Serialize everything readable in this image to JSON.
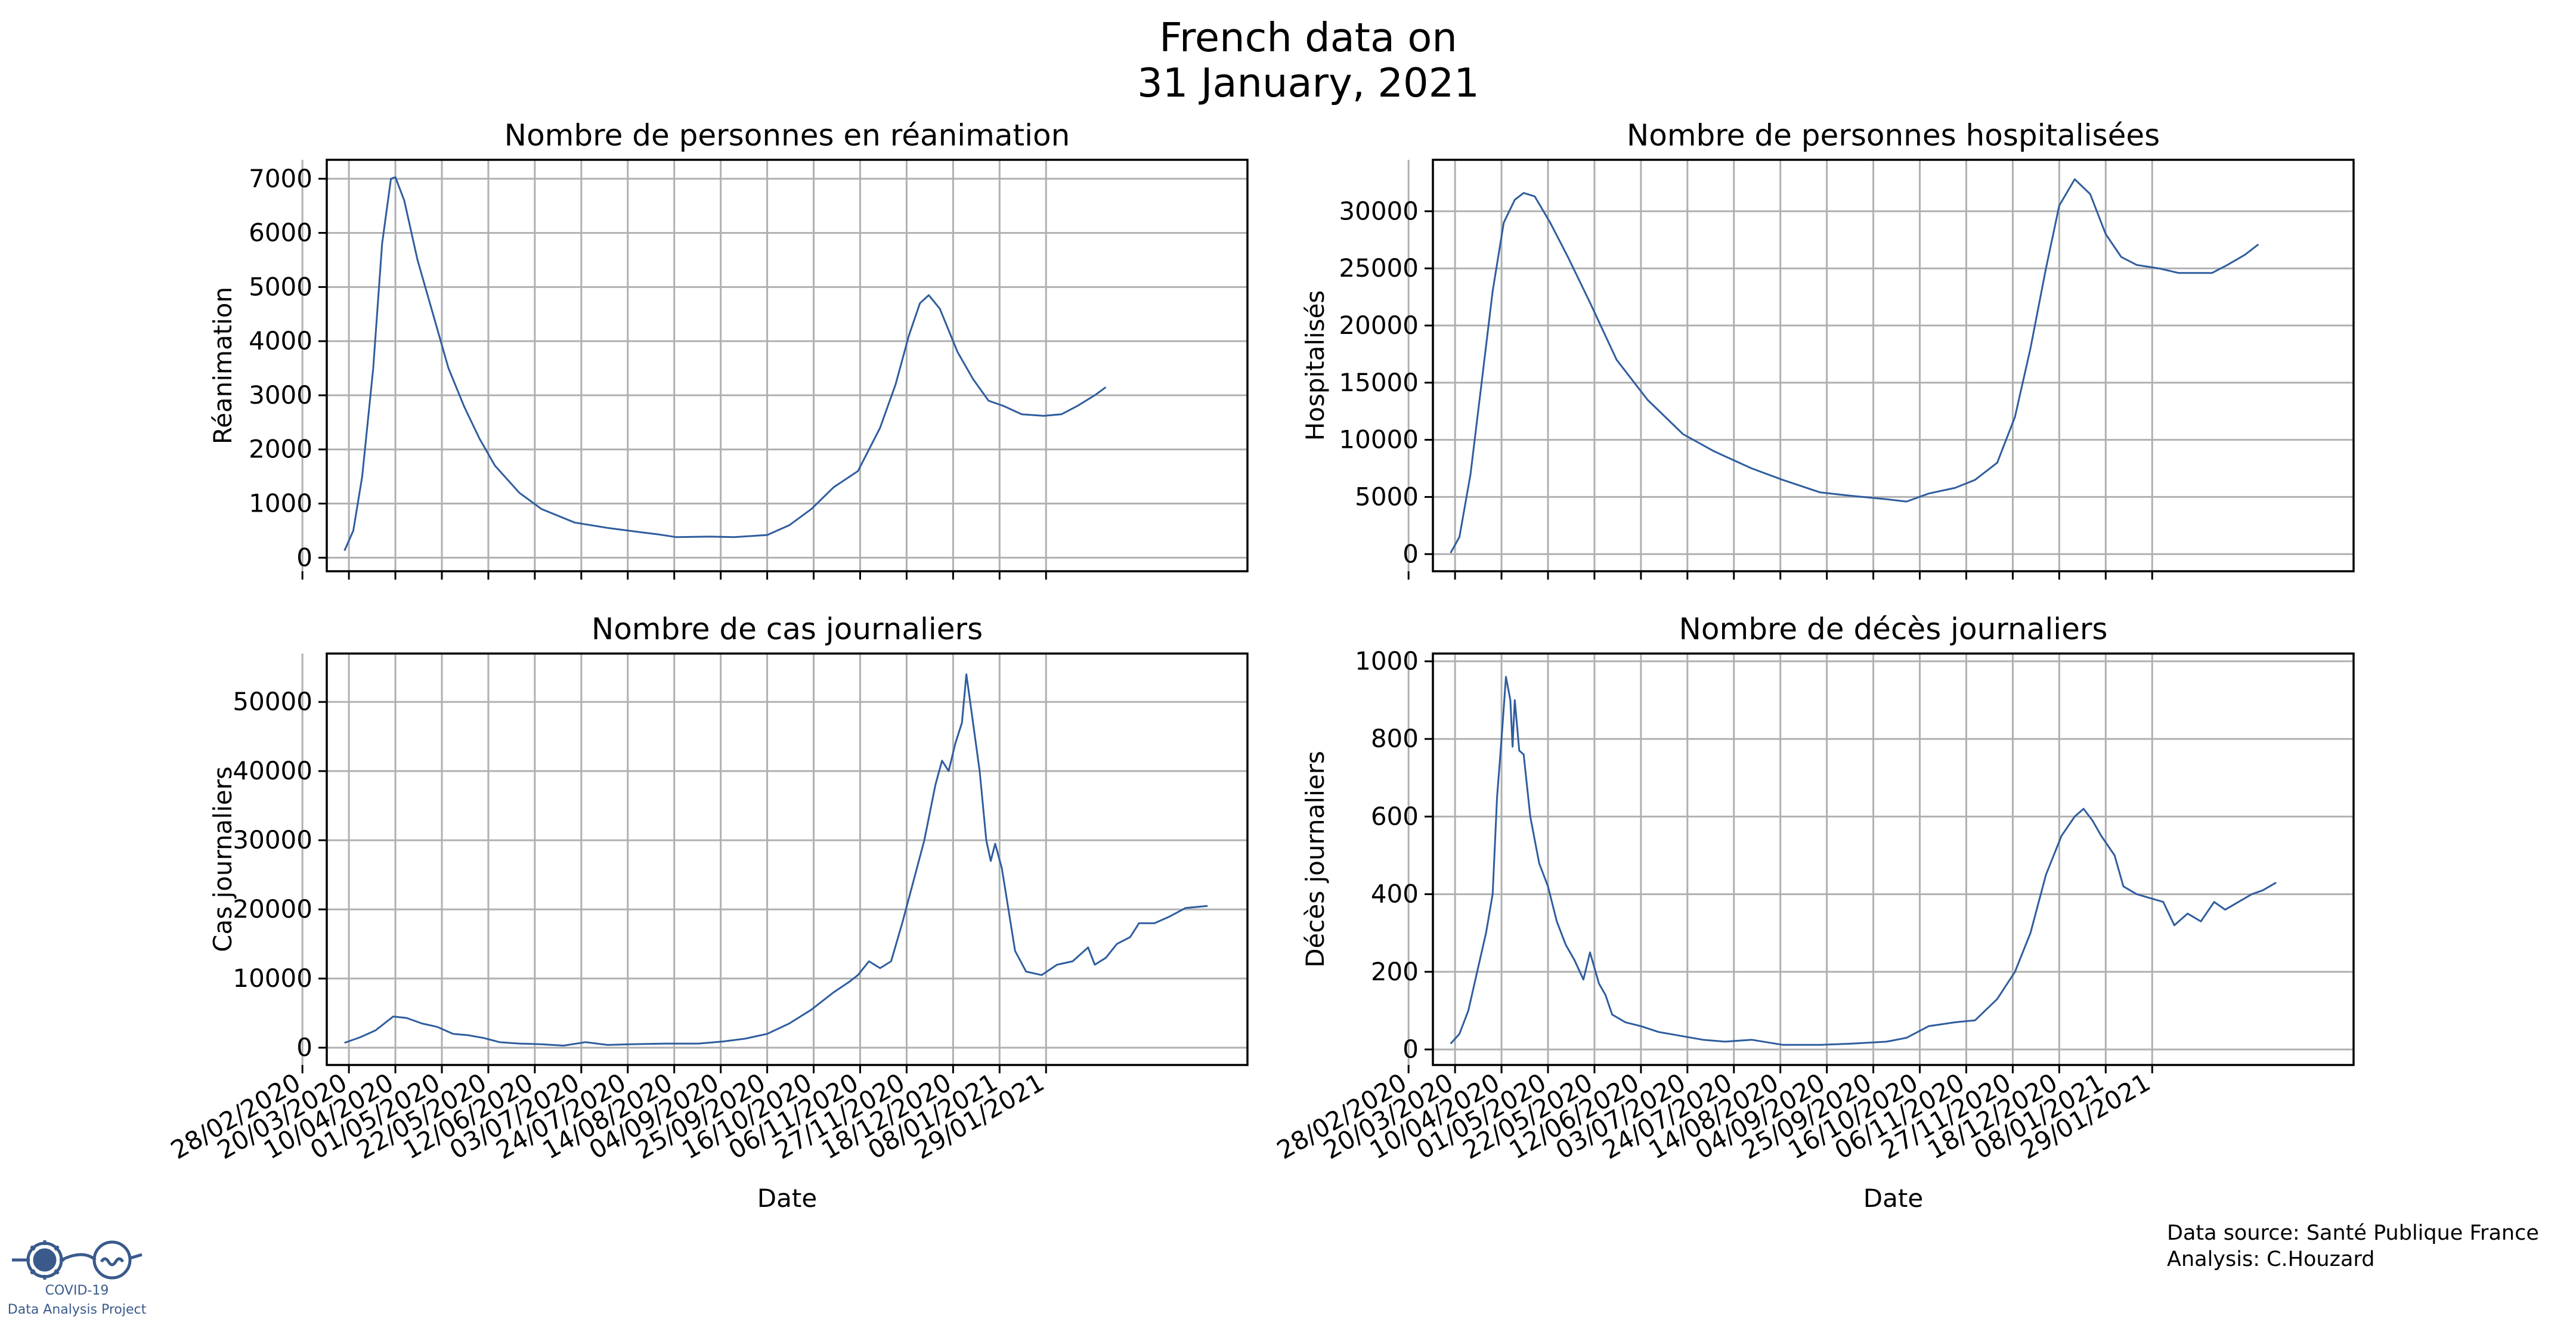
{
  "figure": {
    "title_line1": "French data on",
    "title_line2": "31 January, 2021"
  },
  "footer": {
    "source": "Data source: Santé Publique France",
    "analysis": "Analysis: C.Houzard"
  },
  "logo": {
    "line1": "COVID-19",
    "line2": "Data Analysis Project",
    "icon": "virus-glasses-icon",
    "color": "#3a5a8c"
  },
  "style": {
    "line_color": "#2f5d9e",
    "grid_color": "#b0b0b0"
  },
  "chart_data": [
    {
      "type": "line",
      "title": "Nombre de personnes en réanimation",
      "xlabel": "",
      "ylabel": "Réanimation",
      "x_tick_labels": [
        "28/02/2020",
        "20/03/2020",
        "10/04/2020",
        "01/05/2020",
        "22/05/2020",
        "12/06/2020",
        "03/07/2020",
        "24/07/2020",
        "14/08/2020",
        "04/09/2020",
        "25/09/2020",
        "16/10/2020",
        "06/11/2020",
        "27/11/2020",
        "18/12/2020",
        "08/01/2021",
        "29/01/2021"
      ],
      "show_x_tick_labels": false,
      "ylim": [
        -250,
        7350
      ],
      "yticks": [
        0,
        1000,
        2000,
        3000,
        4000,
        5000,
        6000,
        7000
      ],
      "grid": true,
      "series": [
        {
          "points": [
            [
              "2020-03-18",
              130
            ],
            [
              "2020-03-22",
              500
            ],
            [
              "2020-03-26",
              1500
            ],
            [
              "2020-03-31",
              3500
            ],
            [
              "2020-04-04",
              5800
            ],
            [
              "2020-04-08",
              7000
            ],
            [
              "2020-04-10",
              7030
            ],
            [
              "2020-04-14",
              6600
            ],
            [
              "2020-04-20",
              5500
            ],
            [
              "2020-04-27",
              4500
            ],
            [
              "2020-05-04",
              3500
            ],
            [
              "2020-05-11",
              2800
            ],
            [
              "2020-05-18",
              2200
            ],
            [
              "2020-05-25",
              1700
            ],
            [
              "2020-06-05",
              1200
            ],
            [
              "2020-06-15",
              900
            ],
            [
              "2020-06-30",
              650
            ],
            [
              "2020-07-15",
              550
            ],
            [
              "2020-07-30",
              470
            ],
            [
              "2020-08-07",
              430
            ],
            [
              "2020-08-15",
              380
            ],
            [
              "2020-08-30",
              390
            ],
            [
              "2020-09-10",
              380
            ],
            [
              "2020-09-25",
              420
            ],
            [
              "2020-10-05",
              600
            ],
            [
              "2020-10-15",
              900
            ],
            [
              "2020-10-25",
              1300
            ],
            [
              "2020-11-05",
              1600
            ],
            [
              "2020-11-15",
              2400
            ],
            [
              "2020-11-22",
              3200
            ],
            [
              "2020-11-28",
              4100
            ],
            [
              "2020-12-03",
              4700
            ],
            [
              "2020-12-07",
              4850
            ],
            [
              "2020-12-12",
              4600
            ],
            [
              "2020-12-20",
              3800
            ],
            [
              "2020-12-27",
              3300
            ],
            [
              "2021-01-03",
              2900
            ],
            [
              "2021-01-10",
              2800
            ],
            [
              "2021-01-18",
              2650
            ],
            [
              "2021-01-28",
              2620
            ],
            [
              "2021-02-05",
              2650
            ],
            [
              "2021-02-12",
              2800
            ],
            [
              "2021-02-20",
              3000
            ],
            [
              "2021-02-25",
              3150
            ]
          ]
        }
      ]
    },
    {
      "type": "line",
      "title": "Nombre de personnes hospitalisées",
      "xlabel": "",
      "ylabel": "Hospitalisés",
      "x_tick_labels": [
        "28/02/2020",
        "20/03/2020",
        "10/04/2020",
        "01/05/2020",
        "22/05/2020",
        "12/06/2020",
        "03/07/2020",
        "24/07/2020",
        "14/08/2020",
        "04/09/2020",
        "25/09/2020",
        "16/10/2020",
        "06/11/2020",
        "27/11/2020",
        "18/12/2020",
        "08/01/2021",
        "29/01/2021"
      ],
      "show_x_tick_labels": false,
      "ylim": [
        -1500,
        34500
      ],
      "yticks": [
        0,
        5000,
        10000,
        15000,
        20000,
        25000,
        30000
      ],
      "grid": true,
      "series": [
        {
          "points": [
            [
              "2020-03-18",
              100
            ],
            [
              "2020-03-22",
              1500
            ],
            [
              "2020-03-27",
              7000
            ],
            [
              "2020-04-01",
              15000
            ],
            [
              "2020-04-06",
              23000
            ],
            [
              "2020-04-11",
              29000
            ],
            [
              "2020-04-16",
              31000
            ],
            [
              "2020-04-20",
              31600
            ],
            [
              "2020-04-25",
              31300
            ],
            [
              "2020-05-02",
              29000
            ],
            [
              "2020-05-10",
              26000
            ],
            [
              "2020-05-20",
              22000
            ],
            [
              "2020-06-01",
              17000
            ],
            [
              "2020-06-15",
              13500
            ],
            [
              "2020-07-01",
              10500
            ],
            [
              "2020-07-15",
              9000
            ],
            [
              "2020-08-01",
              7500
            ],
            [
              "2020-08-15",
              6500
            ],
            [
              "2020-09-01",
              5400
            ],
            [
              "2020-09-15",
              5100
            ],
            [
              "2020-10-01",
              4800
            ],
            [
              "2020-10-10",
              4600
            ],
            [
              "2020-10-20",
              5300
            ],
            [
              "2020-11-01",
              5800
            ],
            [
              "2020-11-10",
              6500
            ],
            [
              "2020-11-20",
              8000
            ],
            [
              "2020-11-28",
              12000
            ],
            [
              "2020-12-05",
              18000
            ],
            [
              "2020-12-12",
              25000
            ],
            [
              "2020-12-18",
              30500
            ],
            [
              "2020-12-25",
              32800
            ],
            [
              "2021-01-01",
              31500
            ],
            [
              "2021-01-08",
              28000
            ],
            [
              "2021-01-15",
              26000
            ],
            [
              "2021-01-22",
              25300
            ],
            [
              "2021-02-01",
              25000
            ],
            [
              "2021-02-10",
              24600
            ],
            [
              "2021-02-18",
              24600
            ],
            [
              "2021-02-25",
              24600
            ],
            [
              "2021-03-04",
              25300
            ],
            [
              "2021-03-12",
              26200
            ],
            [
              "2021-03-18",
              27100
            ]
          ]
        }
      ]
    },
    {
      "type": "line",
      "title": "Nombre de cas journaliers",
      "xlabel": "Date",
      "ylabel": "Cas journaliers",
      "x_tick_labels": [
        "28/02/2020",
        "20/03/2020",
        "10/04/2020",
        "01/05/2020",
        "22/05/2020",
        "12/06/2020",
        "03/07/2020",
        "24/07/2020",
        "14/08/2020",
        "04/09/2020",
        "25/09/2020",
        "16/10/2020",
        "06/11/2020",
        "27/11/2020",
        "18/12/2020",
        "08/01/2021",
        "29/01/2021"
      ],
      "show_x_tick_labels": true,
      "ylim": [
        -2500,
        57000
      ],
      "yticks": [
        0,
        10000,
        20000,
        30000,
        40000,
        50000
      ],
      "grid": true,
      "series": [
        {
          "points": [
            [
              "2020-03-18",
              700
            ],
            [
              "2020-03-25",
              1500
            ],
            [
              "2020-04-01",
              2500
            ],
            [
              "2020-04-05",
              3500
            ],
            [
              "2020-04-09",
              4500
            ],
            [
              "2020-04-15",
              4300
            ],
            [
              "2020-04-22",
              3500
            ],
            [
              "2020-04-29",
              3000
            ],
            [
              "2020-05-06",
              2000
            ],
            [
              "2020-05-13",
              1800
            ],
            [
              "2020-05-20",
              1400
            ],
            [
              "2020-05-27",
              800
            ],
            [
              "2020-06-05",
              600
            ],
            [
              "2020-06-15",
              500
            ],
            [
              "2020-06-25",
              300
            ],
            [
              "2020-07-05",
              800
            ],
            [
              "2020-07-15",
              400
            ],
            [
              "2020-07-25",
              500
            ],
            [
              "2020-08-10",
              600
            ],
            [
              "2020-08-25",
              600
            ],
            [
              "2020-09-05",
              900
            ],
            [
              "2020-09-15",
              1300
            ],
            [
              "2020-09-25",
              2000
            ],
            [
              "2020-10-05",
              3500
            ],
            [
              "2020-10-15",
              5500
            ],
            [
              "2020-10-25",
              8000
            ],
            [
              "2020-11-01",
              9500
            ],
            [
              "2020-11-05",
              10500
            ],
            [
              "2020-11-10",
              12500
            ],
            [
              "2020-11-15",
              11500
            ],
            [
              "2020-11-20",
              12500
            ],
            [
              "2020-11-25",
              18000
            ],
            [
              "2020-11-30",
              24000
            ],
            [
              "2020-12-05",
              30000
            ],
            [
              "2020-12-10",
              38000
            ],
            [
              "2020-12-13",
              41500
            ],
            [
              "2020-12-16",
              40000
            ],
            [
              "2020-12-19",
              44000
            ],
            [
              "2020-12-22",
              47000
            ],
            [
              "2020-12-24",
              54000
            ],
            [
              "2020-12-27",
              47000
            ],
            [
              "2020-12-30",
              40000
            ],
            [
              "2021-01-02",
              30000
            ],
            [
              "2021-01-04",
              27000
            ],
            [
              "2021-01-06",
              29500
            ],
            [
              "2021-01-09",
              26000
            ],
            [
              "2021-01-12",
              20000
            ],
            [
              "2021-01-15",
              14000
            ],
            [
              "2021-01-20",
              11000
            ],
            [
              "2021-01-27",
              10500
            ],
            [
              "2021-02-03",
              12000
            ],
            [
              "2021-02-10",
              12500
            ],
            [
              "2021-02-17",
              14500
            ],
            [
              "2021-02-20",
              12000
            ],
            [
              "2021-02-25",
              13000
            ],
            [
              "2021-03-02",
              15000
            ],
            [
              "2021-03-08",
              16000
            ],
            [
              "2021-03-12",
              18000
            ],
            [
              "2021-03-19",
              18000
            ],
            [
              "2021-03-26",
              19000
            ],
            [
              "2021-04-02",
              20200
            ],
            [
              "2021-04-12",
              20500
            ]
          ]
        }
      ]
    },
    {
      "type": "line",
      "title": "Nombre de décès journaliers",
      "xlabel": "Date",
      "ylabel": "Décès journaliers",
      "x_tick_labels": [
        "28/02/2020",
        "20/03/2020",
        "10/04/2020",
        "01/05/2020",
        "22/05/2020",
        "12/06/2020",
        "03/07/2020",
        "24/07/2020",
        "14/08/2020",
        "04/09/2020",
        "25/09/2020",
        "16/10/2020",
        "06/11/2020",
        "27/11/2020",
        "18/12/2020",
        "08/01/2021",
        "29/01/2021"
      ],
      "show_x_tick_labels": true,
      "ylim": [
        -40,
        1020
      ],
      "yticks": [
        0,
        200,
        400,
        600,
        800,
        1000
      ],
      "grid": true,
      "series": [
        {
          "points": [
            [
              "2020-03-18",
              15
            ],
            [
              "2020-03-22",
              40
            ],
            [
              "2020-03-26",
              100
            ],
            [
              "2020-03-30",
              200
            ],
            [
              "2020-04-03",
              300
            ],
            [
              "2020-04-06",
              400
            ],
            [
              "2020-04-08",
              650
            ],
            [
              "2020-04-10",
              800
            ],
            [
              "2020-04-12",
              960
            ],
            [
              "2020-04-14",
              900
            ],
            [
              "2020-04-15",
              780
            ],
            [
              "2020-04-16",
              900
            ],
            [
              "2020-04-18",
              770
            ],
            [
              "2020-04-20",
              760
            ],
            [
              "2020-04-23",
              600
            ],
            [
              "2020-04-27",
              480
            ],
            [
              "2020-05-01",
              420
            ],
            [
              "2020-05-05",
              330
            ],
            [
              "2020-05-09",
              270
            ],
            [
              "2020-05-13",
              230
            ],
            [
              "2020-05-17",
              180
            ],
            [
              "2020-05-20",
              250
            ],
            [
              "2020-05-24",
              170
            ],
            [
              "2020-05-27",
              140
            ],
            [
              "2020-05-30",
              90
            ],
            [
              "2020-06-05",
              70
            ],
            [
              "2020-06-12",
              60
            ],
            [
              "2020-06-20",
              45
            ],
            [
              "2020-06-30",
              35
            ],
            [
              "2020-07-10",
              25
            ],
            [
              "2020-07-20",
              20
            ],
            [
              "2020-08-01",
              25
            ],
            [
              "2020-08-15",
              12
            ],
            [
              "2020-09-01",
              12
            ],
            [
              "2020-09-15",
              15
            ],
            [
              "2020-10-01",
              20
            ],
            [
              "2020-10-10",
              30
            ],
            [
              "2020-10-20",
              60
            ],
            [
              "2020-11-01",
              70
            ],
            [
              "2020-11-10",
              75
            ],
            [
              "2020-11-20",
              130
            ],
            [
              "2020-11-28",
              200
            ],
            [
              "2020-12-05",
              300
            ],
            [
              "2020-12-12",
              450
            ],
            [
              "2020-12-19",
              550
            ],
            [
              "2020-12-25",
              600
            ],
            [
              "2020-12-29",
              620
            ],
            [
              "2021-01-02",
              590
            ],
            [
              "2021-01-06",
              550
            ],
            [
              "2021-01-12",
              500
            ],
            [
              "2021-01-16",
              420
            ],
            [
              "2021-01-22",
              400
            ],
            [
              "2021-01-28",
              390
            ],
            [
              "2021-02-03",
              380
            ],
            [
              "2021-02-08",
              320
            ],
            [
              "2021-02-14",
              350
            ],
            [
              "2021-02-20",
              330
            ],
            [
              "2021-02-26",
              380
            ],
            [
              "2021-03-03",
              360
            ],
            [
              "2021-03-09",
              380
            ],
            [
              "2021-03-15",
              400
            ],
            [
              "2021-03-20",
              410
            ],
            [
              "2021-03-26",
              430
            ]
          ]
        }
      ]
    }
  ]
}
